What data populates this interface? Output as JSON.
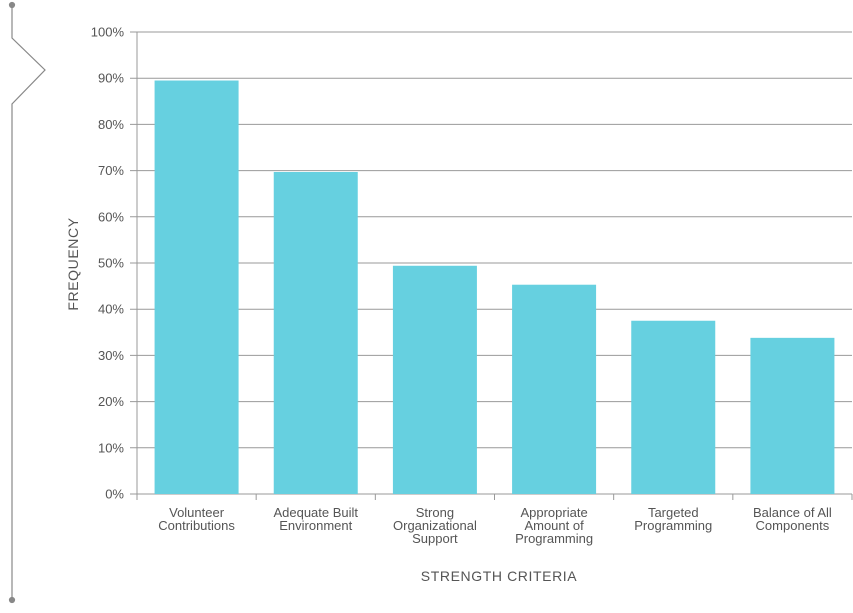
{
  "chart_data": {
    "type": "bar",
    "title": "",
    "xlabel": "STRENGTH CRITERIA",
    "ylabel": "FREQUENCY",
    "ylim": [
      0,
      100
    ],
    "y_ticks": [
      0,
      10,
      20,
      30,
      40,
      50,
      60,
      70,
      80,
      90,
      100
    ],
    "y_tick_suffix": "%",
    "grid": true,
    "categories": [
      [
        "Volunteer",
        "Contributions"
      ],
      [
        "Adequate Built",
        "Environment"
      ],
      [
        "Strong",
        "Organizational",
        "Support"
      ],
      [
        "Appropriate",
        "Amount of",
        "Programming"
      ],
      [
        "Targeted",
        "Programming"
      ],
      [
        "Balance of All",
        "Components"
      ]
    ],
    "values": [
      89.5,
      69.7,
      49.4,
      45.3,
      37.5,
      33.8
    ],
    "colors": {
      "bar": "#66D0E0",
      "grid": "#999999",
      "axis": "#999999",
      "text": "#555555",
      "decoration": "#888888"
    }
  }
}
